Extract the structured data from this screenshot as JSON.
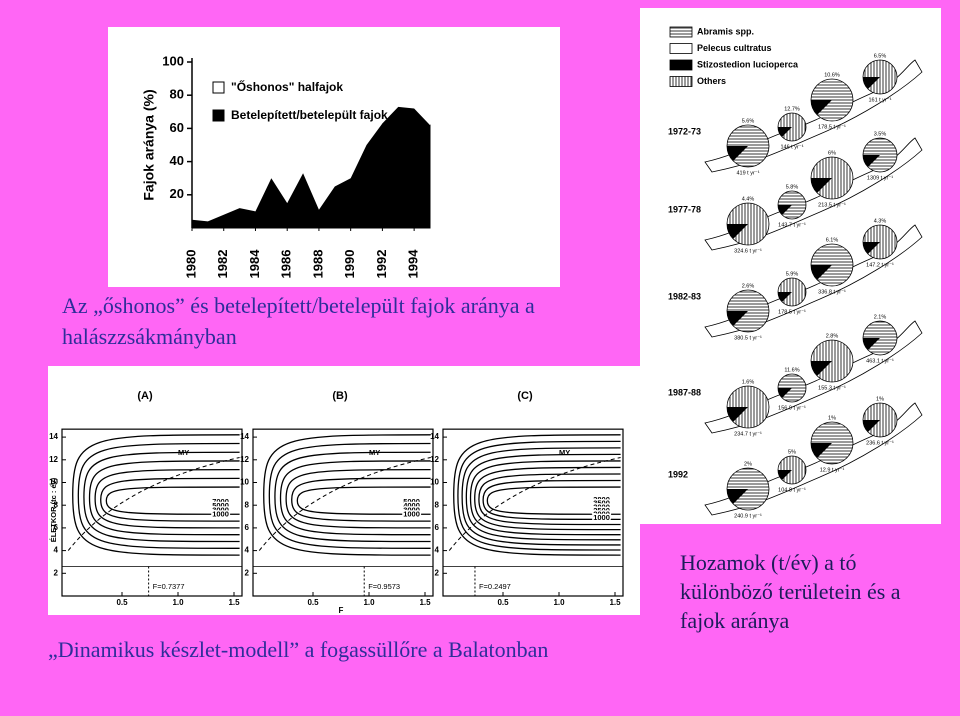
{
  "chart_data": {
    "type": "area",
    "y_label": "Fajok aránya (%)",
    "x": [
      1980,
      1981,
      1982,
      1983,
      1984,
      1985,
      1986,
      1987,
      1988,
      1989,
      1990,
      1991,
      1992,
      1993,
      1994,
      1995
    ],
    "xlim": [
      1980,
      1995
    ],
    "xticks": [
      1980,
      1982,
      1984,
      1986,
      1988,
      1990,
      1992,
      1994
    ],
    "ylim": [
      0,
      100
    ],
    "yticks": [
      20,
      40,
      60,
      80,
      100
    ],
    "series": [
      {
        "name": "\"Őshonos\" halfajok",
        "color": "#ffffff",
        "values": [
          95,
          96,
          92,
          88,
          90,
          70,
          85,
          67,
          89,
          75,
          70,
          50,
          37,
          27,
          28,
          38
        ]
      },
      {
        "name": "Betelepített/betelepült fajok",
        "color": "#000000",
        "values": [
          5,
          4,
          8,
          12,
          10,
          30,
          15,
          33,
          11,
          25,
          30,
          50,
          63,
          73,
          72,
          62
        ]
      }
    ]
  },
  "captions": {
    "top_left": "Az „őshonos” és betelepített/betelepült fajok aránya a halászzsákmányban",
    "bottom_left": "„Dinamikus készlet-modell” a fogassüllőre a Balatonban",
    "right": "Hozamok (t/év) a tó különböző területein és a fajok aránya"
  },
  "maps": {
    "legend": [
      "Abramis spp.",
      "Pelecus cultratus",
      "Stizostedion lucioperca",
      "Others"
    ],
    "panels": [
      {
        "year": "1972-73",
        "labels": [
          "5.6%",
          "12.7%",
          "10.6%",
          "6.5%",
          "419 t yr⁻¹",
          "146 t yr⁻¹",
          "178.5 t yr⁻¹",
          "161 t yr⁻¹"
        ]
      },
      {
        "year": "1977-78",
        "labels": [
          "4.4%",
          "5.8%",
          "6%",
          "3.5%",
          "324.6 t yr⁻¹",
          "143.7 t yr⁻¹",
          "213.5 t yr⁻¹",
          "1309 t yr⁻¹"
        ]
      },
      {
        "year": "1982-83",
        "labels": [
          "2.6%",
          "5.9%",
          "6.1%",
          "4.3%",
          "380.5 t yr⁻¹",
          "178.5 t yr⁻¹",
          "336.8 t yr⁻¹",
          "147.2 t yr⁻¹"
        ]
      },
      {
        "year": "1987-88",
        "labels": [
          "1.6%",
          "11.6%",
          "2.8%",
          "2.1%",
          "234.7 t yr⁻¹",
          "156.9 t yr⁻¹",
          "155.3 t yr⁻¹",
          "463.1 t yr⁻¹"
        ]
      },
      {
        "year": "1992",
        "labels": [
          "2%",
          "5%",
          "1%",
          "1%",
          "240.9 t yr⁻¹",
          "104.8 t yr⁻¹",
          "12.9 t yr⁻¹",
          "236.6 t yr⁻¹"
        ]
      }
    ]
  },
  "isopleths": {
    "y_label": "ÉLETKOR (tc : év)",
    "x_label": "F",
    "yticks": [
      2,
      4,
      6,
      8,
      10,
      12,
      14
    ],
    "xticks": [
      0.5,
      {
        "value": 1.0,
        "label": "1.0"
      },
      1.5
    ],
    "panels": [
      {
        "tag": "(A)",
        "my": "MY",
        "levels": [
          7000,
          5000,
          3000,
          1000
        ],
        "f": {
          "value": 0.7377,
          "label": "F=0.7377"
        }
      },
      {
        "tag": "(B)",
        "my": "MY",
        "levels": [
          5000,
          4000,
          3000,
          1000
        ],
        "f": {
          "value": 0.9573,
          "label": "F=0.9573"
        }
      },
      {
        "tag": "(C)",
        "my": "MY",
        "levels": [
          3800,
          3500,
          3000,
          2500,
          2000,
          1000
        ],
        "f": {
          "value": 0.2497,
          "label": "F=0.2497"
        }
      }
    ]
  }
}
